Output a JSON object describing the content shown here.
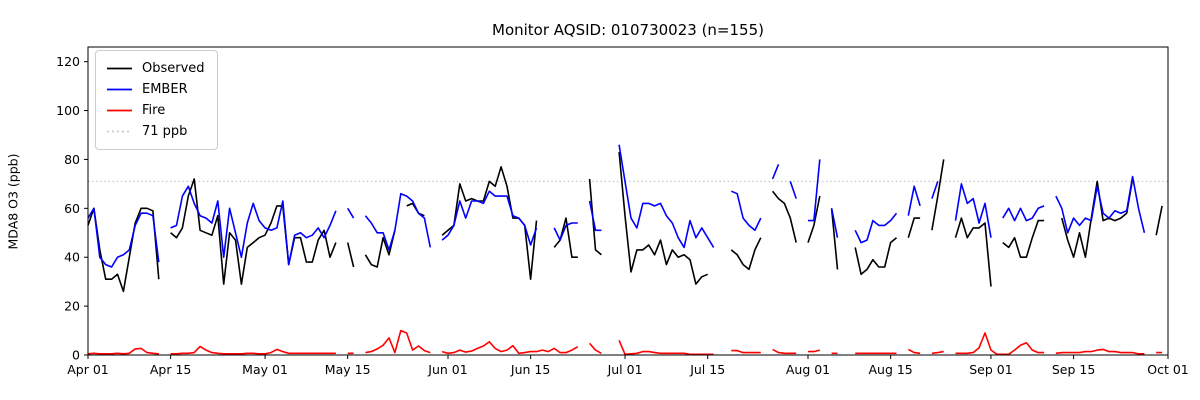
{
  "figure": {
    "title": "Monitor AQSID: 010730023 (n=155)"
  },
  "chart_data": {
    "type": "line",
    "title": "Monitor AQSID: 010730023 (n=155)",
    "xlabel": "",
    "ylabel": "MDA8 O3 (ppb)",
    "ylim": [
      0,
      126
    ],
    "yticks": [
      0,
      20,
      40,
      60,
      80,
      100,
      120
    ],
    "xticks": [
      {
        "label": "Apr 01",
        "day": 0
      },
      {
        "label": "Apr 15",
        "day": 14
      },
      {
        "label": "May 01",
        "day": 30
      },
      {
        "label": "May 15",
        "day": 44
      },
      {
        "label": "Jun 01",
        "day": 61
      },
      {
        "label": "Jun 15",
        "day": 75
      },
      {
        "label": "Jul 01",
        "day": 91
      },
      {
        "label": "Jul 15",
        "day": 105
      },
      {
        "label": "Aug 01",
        "day": 122
      },
      {
        "label": "Aug 15",
        "day": 136
      },
      {
        "label": "Sep 01",
        "day": 153
      },
      {
        "label": "Sep 15",
        "day": 167
      },
      {
        "label": "Oct 01",
        "day": 183
      }
    ],
    "x_axis_note": "daily values; index 0 = Apr 01, index 182 = Sep 30; null = missing day",
    "grid": false,
    "legend_position": "upper left",
    "threshold": {
      "value": 71,
      "label": "71 ppb",
      "color": "#c9c9c9",
      "style": "dotted"
    },
    "series": [
      {
        "name": "Observed",
        "color": "#000000",
        "values": [
          53,
          60,
          43,
          31,
          31,
          33,
          26,
          40,
          54,
          60,
          60,
          59,
          31,
          null,
          50,
          48,
          52,
          65,
          72,
          51,
          50,
          49,
          57,
          29,
          50,
          47,
          29,
          44,
          46,
          48,
          49,
          54,
          61,
          61,
          37,
          48,
          48,
          38,
          38,
          47,
          51,
          40,
          46,
          null,
          46,
          36,
          null,
          41,
          37,
          36,
          48,
          41,
          51,
          null,
          61,
          62,
          58,
          57,
          null,
          null,
          49,
          51,
          53,
          70,
          63,
          64,
          63,
          63,
          71,
          69,
          77,
          69,
          56,
          56,
          53,
          31,
          55,
          null,
          null,
          44,
          47,
          56,
          40,
          40,
          null,
          72,
          43,
          41,
          null,
          null,
          83,
          57,
          34,
          43,
          43,
          45,
          41,
          47,
          37,
          43,
          40,
          41,
          39,
          29,
          32,
          33,
          null,
          null,
          null,
          43,
          41,
          37,
          35,
          43,
          48,
          null,
          67,
          64,
          62,
          56,
          46,
          null,
          46,
          53,
          65,
          null,
          60,
          35,
          null,
          null,
          44,
          33,
          35,
          39,
          36,
          36,
          46,
          48,
          null,
          48,
          56,
          56,
          null,
          51,
          65,
          80,
          null,
          48,
          56,
          48,
          52,
          52,
          54,
          28,
          null,
          46,
          44,
          48,
          40,
          40,
          48,
          55,
          55,
          null,
          null,
          56,
          47,
          40,
          50,
          40,
          56,
          71,
          55,
          56,
          55,
          56,
          58,
          72,
          null,
          null,
          null,
          49,
          61
        ]
      },
      {
        "name": "EMBER",
        "color": "#0000ff",
        "values": [
          56,
          60,
          40,
          37,
          36,
          40,
          41,
          43,
          53,
          58,
          58,
          57,
          38,
          null,
          52,
          53,
          65,
          69,
          62,
          57,
          56,
          54,
          63,
          40,
          60,
          50,
          40,
          54,
          62,
          55,
          52,
          51,
          52,
          63,
          37,
          49,
          50,
          48,
          49,
          52,
          48,
          53,
          59,
          null,
          60,
          56,
          null,
          57,
          54,
          50,
          50,
          43,
          51,
          66,
          65,
          63,
          58,
          56,
          44,
          null,
          47,
          49,
          53,
          63,
          56,
          63,
          63,
          62,
          67,
          65,
          65,
          65,
          57,
          56,
          53,
          45,
          52,
          null,
          null,
          52,
          47,
          53,
          54,
          54,
          null,
          63,
          51,
          51,
          null,
          null,
          86,
          71,
          56,
          52,
          62,
          62,
          61,
          62,
          57,
          54,
          48,
          44,
          55,
          48,
          52,
          48,
          44,
          null,
          null,
          67,
          66,
          56,
          53,
          51,
          56,
          null,
          72,
          78,
          null,
          71,
          64,
          null,
          55,
          55,
          80,
          null,
          60,
          48,
          null,
          null,
          51,
          46,
          47,
          55,
          53,
          53,
          55,
          58,
          null,
          57,
          69,
          61,
          null,
          64,
          71,
          null,
          null,
          55,
          70,
          62,
          64,
          54,
          62,
          48,
          null,
          56,
          60,
          55,
          60,
          55,
          56,
          60,
          61,
          null,
          65,
          60,
          50,
          56,
          53,
          56,
          55,
          69,
          58,
          56,
          59,
          58,
          59,
          73,
          60,
          50,
          null,
          null,
          null
        ]
      },
      {
        "name": "Fire",
        "color": "#ff0000",
        "values": [
          0.5,
          0.7,
          0.5,
          0.5,
          0.5,
          0.7,
          0.5,
          0.7,
          2.5,
          2.7,
          1,
          0.7,
          0.5,
          null,
          0.5,
          0.5,
          0.7,
          0.7,
          1,
          3.5,
          2,
          1,
          0.7,
          0.5,
          0.5,
          0.5,
          0.5,
          0.7,
          0.7,
          0.5,
          0.5,
          1,
          2.3,
          1.4,
          0.7,
          0.7,
          0.7,
          0.7,
          0.7,
          0.7,
          0.7,
          0.7,
          0.7,
          null,
          0.7,
          0.7,
          null,
          1,
          1.4,
          2.5,
          4,
          7,
          1,
          10,
          9,
          2,
          3.7,
          1.8,
          1,
          null,
          1.4,
          0.7,
          1,
          2,
          1.2,
          1.6,
          2.7,
          3.7,
          5.4,
          2.7,
          1.4,
          2,
          3.8,
          0.7,
          1,
          1.4,
          1.4,
          2,
          1.4,
          2.7,
          1,
          1,
          2,
          3.4,
          null,
          4.8,
          2,
          0.7,
          null,
          null,
          6,
          0.3,
          0.5,
          0.7,
          1.4,
          1.4,
          1,
          0.7,
          0.7,
          0.7,
          0.7,
          0.7,
          0.3,
          0.3,
          0.3,
          0.3,
          0.3,
          null,
          null,
          1.8,
          1.8,
          1,
          1,
          1,
          1,
          null,
          2.3,
          1,
          0.7,
          0.7,
          0.7,
          null,
          1.4,
          1.4,
          2,
          null,
          0.7,
          0.7,
          null,
          null,
          0.7,
          0.7,
          0.7,
          0.7,
          0.7,
          0.7,
          0.7,
          0.7,
          null,
          2.3,
          1,
          0.7,
          null,
          0.7,
          1,
          1.4,
          null,
          0.7,
          0.7,
          0.7,
          1,
          3,
          9,
          2,
          0.3,
          0.3,
          0.3,
          2,
          4,
          5,
          2,
          1,
          1,
          null,
          0.7,
          1,
          1,
          1,
          1,
          1.4,
          1.4,
          2,
          2.3,
          1.4,
          1.4,
          1,
          1,
          1,
          0.5,
          0.5,
          null,
          1,
          1
        ]
      }
    ]
  }
}
